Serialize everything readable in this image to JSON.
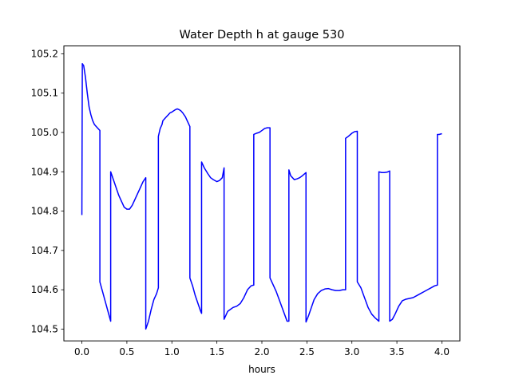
{
  "chart_data": {
    "type": "line",
    "title": "Water Depth h at gauge 530",
    "xlabel": "hours",
    "ylabel": "",
    "xlim": [
      -0.2,
      4.2
    ],
    "ylim": [
      104.47,
      105.22
    ],
    "xticks": [
      0.0,
      0.5,
      1.0,
      1.5,
      2.0,
      2.5,
      3.0,
      3.5,
      4.0
    ],
    "xtick_labels": [
      "0.0",
      "0.5",
      "1.0",
      "1.5",
      "2.0",
      "2.5",
      "3.0",
      "3.5",
      "4.0"
    ],
    "yticks": [
      104.5,
      104.6,
      104.7,
      104.8,
      104.9,
      105.0,
      105.1,
      105.2
    ],
    "ytick_labels": [
      "104.5",
      "104.6",
      "104.7",
      "104.8",
      "104.9",
      "105.0",
      "105.1",
      "105.2"
    ],
    "grid": false,
    "line_color": "#0000ff",
    "series": [
      {
        "x": [
          0.0,
          0.005,
          0.02,
          0.04,
          0.06,
          0.08,
          0.1,
          0.12,
          0.14,
          0.16,
          0.18,
          0.2,
          0.2,
          0.23,
          0.26,
          0.29,
          0.32,
          0.32,
          0.35,
          0.38,
          0.41,
          0.44,
          0.47,
          0.5,
          0.53,
          0.56,
          0.59,
          0.62,
          0.65,
          0.68,
          0.71,
          0.71,
          0.74,
          0.77,
          0.8,
          0.83,
          0.85,
          0.85,
          0.87,
          0.89,
          0.9,
          0.92,
          0.94,
          0.96,
          0.98,
          1.0,
          1.02,
          1.04,
          1.06,
          1.08,
          1.1,
          1.12,
          1.15,
          1.18,
          1.2,
          1.2,
          1.23,
          1.26,
          1.29,
          1.32,
          1.33,
          1.33,
          1.36,
          1.4,
          1.43,
          1.46,
          1.5,
          1.53,
          1.56,
          1.58,
          1.58,
          1.6,
          1.62,
          1.65,
          1.68,
          1.72,
          1.76,
          1.8,
          1.84,
          1.88,
          1.91,
          1.91,
          1.94,
          1.97,
          2.0,
          2.03,
          2.06,
          2.09,
          2.09,
          2.12,
          2.16,
          2.2,
          2.24,
          2.28,
          2.3,
          2.3,
          2.32,
          2.34,
          2.36,
          2.39,
          2.42,
          2.45,
          2.49,
          2.49,
          2.52,
          2.55,
          2.58,
          2.62,
          2.66,
          2.7,
          2.74,
          2.78,
          2.82,
          2.86,
          2.9,
          2.93,
          2.93,
          2.96,
          3.0,
          3.03,
          3.06,
          3.06,
          3.1,
          3.14,
          3.18,
          3.22,
          3.26,
          3.3,
          3.3,
          3.33,
          3.36,
          3.39,
          3.42,
          3.42,
          3.45,
          3.48,
          3.52,
          3.56,
          3.6,
          3.64,
          3.68,
          3.72,
          3.76,
          3.8,
          3.84,
          3.88,
          3.92,
          3.95,
          3.95,
          3.97,
          4.0
        ],
        "y": [
          104.79,
          105.175,
          105.17,
          105.14,
          105.1,
          105.065,
          105.045,
          105.03,
          105.02,
          105.015,
          105.01,
          105.005,
          104.62,
          104.595,
          104.57,
          104.545,
          104.52,
          104.9,
          104.88,
          104.86,
          104.84,
          104.825,
          104.81,
          104.805,
          104.805,
          104.815,
          104.83,
          104.845,
          104.86,
          104.875,
          104.885,
          104.5,
          104.52,
          104.55,
          104.575,
          104.59,
          104.605,
          104.99,
          105.01,
          105.02,
          105.03,
          105.035,
          105.04,
          105.045,
          105.05,
          105.052,
          105.055,
          105.058,
          105.06,
          105.058,
          105.055,
          105.05,
          105.04,
          105.025,
          105.015,
          104.63,
          104.61,
          104.585,
          104.565,
          104.545,
          104.54,
          104.925,
          104.91,
          104.895,
          104.885,
          104.88,
          104.875,
          104.878,
          104.885,
          104.91,
          104.525,
          104.535,
          104.545,
          104.55,
          104.555,
          104.558,
          104.565,
          104.58,
          104.6,
          104.61,
          104.612,
          104.995,
          104.998,
          105.0,
          105.005,
          105.01,
          105.012,
          105.012,
          104.63,
          104.615,
          104.595,
          104.57,
          104.545,
          104.52,
          104.52,
          104.905,
          104.89,
          104.885,
          104.88,
          104.882,
          104.885,
          104.89,
          104.898,
          104.518,
          104.535,
          104.555,
          104.575,
          104.59,
          104.598,
          104.602,
          104.603,
          104.6,
          104.598,
          104.598,
          104.6,
          104.6,
          104.985,
          104.99,
          104.998,
          105.002,
          105.003,
          104.62,
          104.605,
          104.58,
          104.555,
          104.538,
          104.528,
          104.52,
          104.9,
          104.898,
          104.898,
          104.899,
          104.902,
          104.52,
          104.525,
          104.538,
          104.558,
          104.572,
          104.576,
          104.578,
          104.58,
          104.585,
          104.59,
          104.595,
          104.6,
          104.605,
          104.61,
          104.612,
          104.995,
          104.995,
          104.997
        ]
      }
    ]
  }
}
